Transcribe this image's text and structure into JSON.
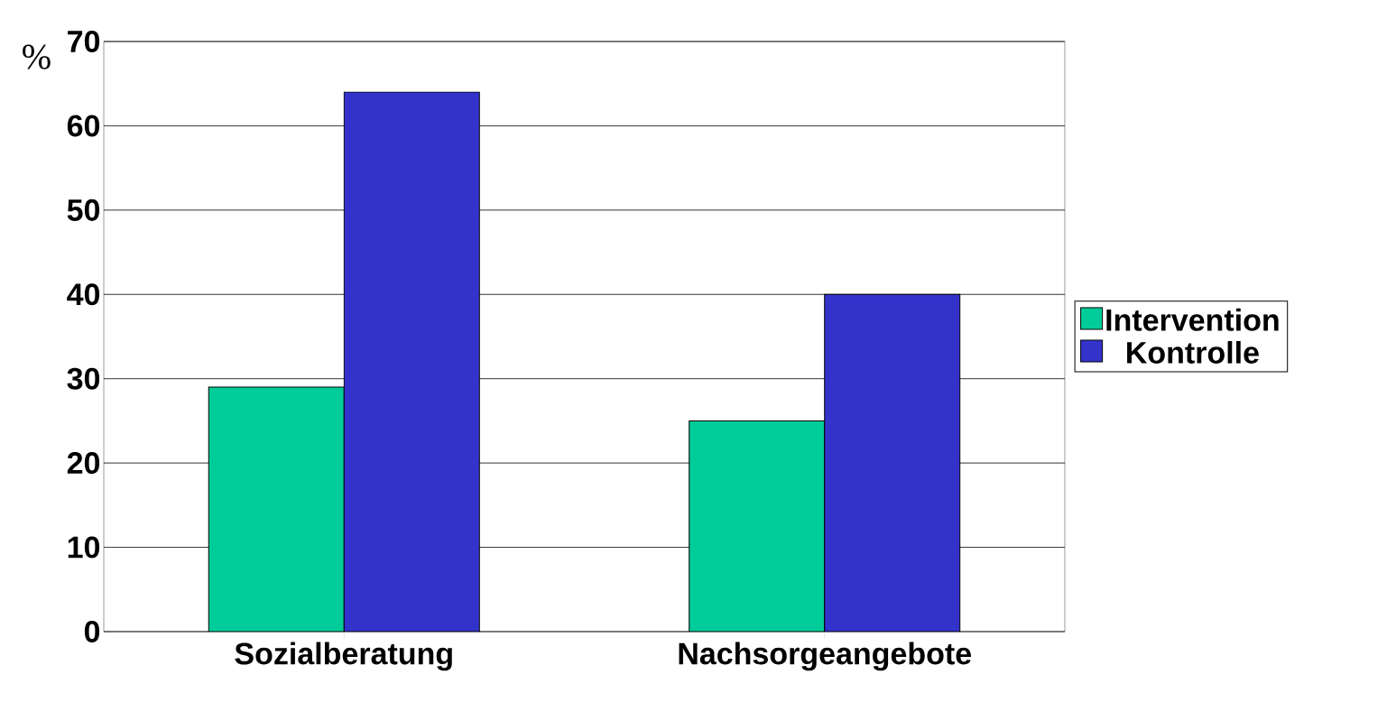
{
  "chart_data": {
    "type": "bar",
    "ylabel": "%",
    "categories": [
      "Sozialberatung",
      "Nachsorgeangebote"
    ],
    "series": [
      {
        "name": "Intervention",
        "color": "#00cc99",
        "values": [
          29,
          25
        ]
      },
      {
        "name": "Kontrolle",
        "color": "#3333cc",
        "values": [
          64,
          40
        ]
      }
    ],
    "ylim": [
      0,
      70
    ],
    "yticks": [
      0,
      10,
      20,
      30,
      40,
      50,
      60,
      70
    ],
    "grid": "y",
    "legend": "right"
  }
}
